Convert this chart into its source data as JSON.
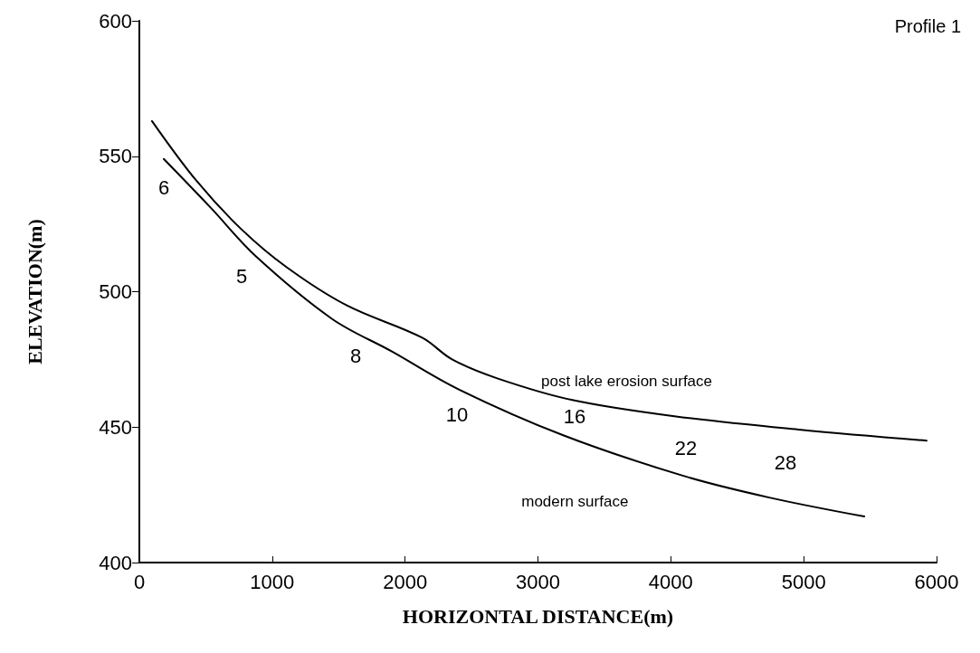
{
  "chart_data": {
    "type": "line",
    "title": "Profile 1",
    "xlabel": "HORIZONTAL DISTANCE(m)",
    "ylabel": "ELEVATION(m)",
    "series": [
      {
        "name": "post lake erosion surface",
        "color": "#000000",
        "x": [
          95,
          429,
          769,
          1109,
          1558,
          2129,
          2354,
          2694,
          3259,
          4027,
          4980,
          5925
        ],
        "values": [
          563,
          541,
          523,
          509,
          495,
          483,
          475,
          468,
          460,
          454,
          449,
          445
        ]
      },
      {
        "name": "modern surface",
        "color": "#000000",
        "x": [
          184,
          537,
          878,
          1449,
          1898,
          2401,
          3190,
          4095,
          4741,
          5456
        ],
        "values": [
          549,
          531,
          513,
          490,
          478,
          464,
          447,
          432,
          424,
          417
        ]
      }
    ],
    "annotations": [
      "6",
      "5",
      "8",
      "10",
      "16",
      "22",
      "28"
    ],
    "xlim": [
      0,
      6000
    ],
    "xticks": [
      0,
      1000,
      2000,
      3000,
      4000,
      5000,
      6000
    ],
    "ylim": [
      400,
      600
    ],
    "yticks": [
      400,
      450,
      500,
      550,
      600
    ],
    "grid": false,
    "legend": false,
    "marker": "none",
    "line_style": "solid"
  }
}
